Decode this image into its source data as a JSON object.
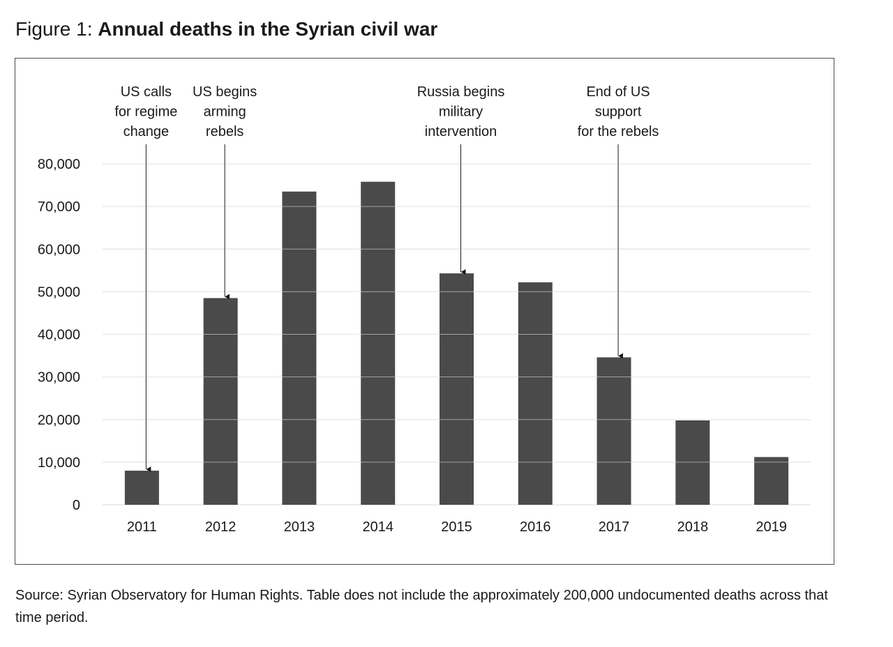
{
  "figure": {
    "prefix": "Figure 1:",
    "title": "Annual deaths in the Syrian civil war"
  },
  "source": "Source: Syrian Observatory for Human Rights. Table does not include the approximately 200,000 undocumented deaths across that time period.",
  "colors": {
    "bar": "#4a4a4a",
    "grid": "#e2e2e2",
    "frame": "#4a4a4a",
    "text": "#1a1a1a"
  },
  "chart_data": {
    "type": "bar",
    "title": "Annual deaths in the Syrian civil war",
    "xlabel": "",
    "ylabel": "",
    "categories": [
      "2011",
      "2012",
      "2013",
      "2014",
      "2015",
      "2016",
      "2017",
      "2018",
      "2019"
    ],
    "values": [
      8000,
      48500,
      73500,
      75800,
      54300,
      52200,
      34600,
      19800,
      11200
    ],
    "ylim": [
      0,
      80000
    ],
    "yticks": [
      0,
      10000,
      20000,
      30000,
      40000,
      50000,
      60000,
      70000,
      80000
    ],
    "ytick_labels": [
      "0",
      "10,000",
      "20,000",
      "30,000",
      "40,000",
      "50,000",
      "60,000",
      "70,000",
      "80,000"
    ],
    "grid": true,
    "legend": "none",
    "annotations": [
      {
        "category": "2011",
        "lines": [
          "US calls",
          "for regime",
          "change"
        ]
      },
      {
        "category": "2012",
        "lines": [
          "US begins",
          "arming",
          "rebels"
        ]
      },
      {
        "category": "2015",
        "lines": [
          "Russia begins",
          "military",
          "intervention"
        ]
      },
      {
        "category": "2017",
        "lines": [
          "End of US",
          "support",
          "for the rebels"
        ]
      }
    ]
  }
}
